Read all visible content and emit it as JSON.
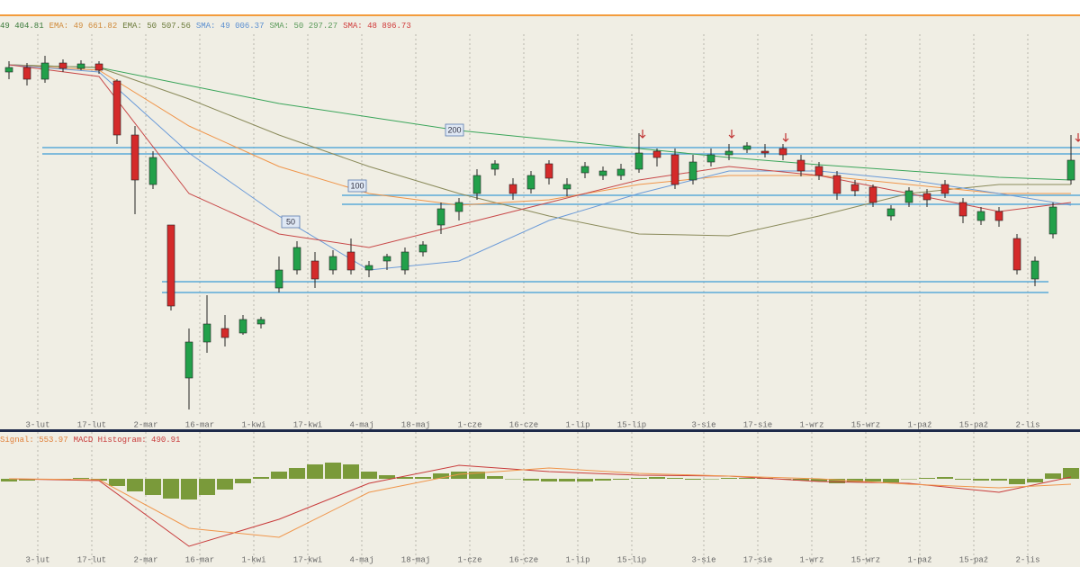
{
  "chart_data": [
    {
      "type": "candlestick",
      "legend": [
        {
          "text": "49 404.81",
          "color": "#3a7a3a"
        },
        {
          "text": "EMA: 49 661.82",
          "color": "#d08a3a"
        },
        {
          "text": "EMA: 50 507.56",
          "color": "#6b7a3a"
        },
        {
          "text": "SMA: 49 006.37",
          "color": "#5b8fd0"
        },
        {
          "text": "SMA: 50 297.27",
          "color": "#5a9a5a"
        },
        {
          "text": "SMA: 48 896.73",
          "color": "#d03a3a"
        }
      ],
      "categories": [
        null,
        null,
        "3-lut",
        null,
        null,
        "17-lut",
        null,
        null,
        "2-mar",
        null,
        null,
        "16-mar",
        null,
        null,
        "1-kwi",
        null,
        null,
        "17-kwi",
        null,
        null,
        "4-maj",
        null,
        null,
        "18-maj",
        null,
        null,
        "1-cze",
        null,
        null,
        "16-cze",
        null,
        null,
        "1-lip",
        null,
        null,
        "15-lip",
        null,
        null,
        null,
        "3-sie",
        null,
        null,
        "17-sie",
        null,
        null,
        "1-wrz",
        null,
        null,
        "15-wrz",
        null,
        null,
        "1-paź",
        null,
        null,
        "15-paź",
        null,
        null,
        "2-lis",
        null,
        null
      ],
      "open": [
        54320,
        54520,
        54000,
        54720,
        54480,
        54680,
        53920,
        51520,
        49320,
        47520,
        40720,
        42320,
        42920,
        42720,
        43120,
        44720,
        45520,
        45920,
        45520,
        46320,
        45520,
        45920,
        45520,
        46320,
        47520,
        48120,
        48920,
        50000,
        49320,
        49120,
        50240,
        49120,
        49840,
        49720,
        49720,
        50000,
        50800,
        50640,
        49520,
        50320,
        50640,
        50880,
        50800,
        50920,
        50400,
        50120,
        49720,
        49320,
        49200,
        47920,
        48520,
        48920,
        49320,
        48520,
        47720,
        48120,
        46920,
        45120,
        47120,
        49520
      ],
      "high": [
        54800,
        54720,
        55040,
        54880,
        54840,
        54800,
        54000,
        51920,
        50800,
        47520,
        42920,
        44400,
        43520,
        43520,
        43440,
        46120,
        46800,
        46320,
        46400,
        46920,
        45920,
        46240,
        46520,
        46800,
        48520,
        48720,
        50000,
        50400,
        49600,
        49920,
        50400,
        49600,
        50320,
        50120,
        50240,
        51600,
        50920,
        50920,
        50640,
        50920,
        51120,
        51200,
        51120,
        51120,
        50640,
        50320,
        49920,
        49520,
        49320,
        48400,
        49200,
        49120,
        49520,
        48720,
        48320,
        48320,
        47120,
        46120,
        48520,
        51520
      ],
      "low": [
        54000,
        53720,
        53840,
        54320,
        54400,
        54240,
        51120,
        48000,
        49120,
        43720,
        39320,
        41840,
        42120,
        42640,
        42920,
        44520,
        45320,
        44720,
        45320,
        45320,
        45200,
        45520,
        45320,
        46120,
        47120,
        47720,
        48640,
        49720,
        48640,
        48920,
        49320,
        48800,
        49600,
        49520,
        49520,
        49840,
        50120,
        49120,
        49320,
        50120,
        50400,
        50720,
        50520,
        50400,
        49680,
        49520,
        48640,
        48800,
        48320,
        47720,
        48320,
        48320,
        48720,
        47600,
        47520,
        47440,
        45320,
        44800,
        46920,
        49320
      ],
      "close": [
        54520,
        54000,
        54720,
        54480,
        54680,
        54400,
        51520,
        49520,
        50520,
        43920,
        42320,
        43120,
        42520,
        43320,
        43320,
        45520,
        46520,
        45120,
        46120,
        45520,
        45720,
        46120,
        46320,
        46640,
        48240,
        48520,
        49720,
        50240,
        48920,
        49720,
        49600,
        49320,
        50120,
        49920,
        50000,
        50720,
        50520,
        49320,
        50320,
        50640,
        50800,
        51040,
        50720,
        50640,
        49920,
        49720,
        48920,
        49040,
        48520,
        48240,
        49040,
        48640,
        48920,
        47920,
        48120,
        47720,
        45520,
        45920,
        48320,
        50400
      ],
      "up_color": "#22a04a",
      "down_color": "#d42a2a",
      "ylim": [
        39000,
        56000
      ],
      "moving_averages": [
        {
          "color": "#3aa55a",
          "x": [
            0,
            5,
            10,
            15,
            20,
            25,
            30,
            35,
            40,
            45,
            50,
            55,
            59
          ],
          "values": [
            54640,
            54520,
            53720,
            52920,
            52320,
            51720,
            51320,
            50920,
            50520,
            50200,
            49920,
            49640,
            49520
          ]
        },
        {
          "color": "#8a8a5a",
          "x": [
            0,
            5,
            10,
            15,
            20,
            25,
            30,
            35,
            40,
            45,
            50,
            55,
            59
          ],
          "values": [
            54640,
            54520,
            53120,
            51520,
            50120,
            48920,
            47920,
            47120,
            47040,
            47920,
            48920,
            49320,
            49320
          ]
        },
        {
          "color": "#f0954a",
          "x": [
            0,
            5,
            10,
            15,
            20,
            25,
            30,
            35,
            40,
            45,
            50,
            55,
            59
          ],
          "values": [
            54640,
            54400,
            51920,
            50120,
            48920,
            48400,
            48640,
            49320,
            49720,
            49720,
            49320,
            48920,
            48920
          ]
        },
        {
          "color": "#6a9ad8",
          "x": [
            0,
            5,
            10,
            15,
            20,
            25,
            30,
            35,
            40,
            45,
            50,
            55,
            59
          ],
          "values": [
            54640,
            54320,
            50720,
            47920,
            45520,
            45920,
            47720,
            48920,
            49920,
            49920,
            49520,
            48920,
            48400
          ]
        },
        {
          "color": "#c84848",
          "x": [
            0,
            5,
            10,
            15,
            20,
            25,
            30,
            35,
            40,
            45,
            50,
            55,
            59
          ],
          "values": [
            54640,
            54120,
            48920,
            47120,
            46520,
            47520,
            48520,
            49520,
            50120,
            49720,
            48920,
            48120,
            48520
          ]
        }
      ],
      "levels": [
        50960,
        50680,
        48840,
        48440,
        45000,
        44520
      ],
      "level_color": "#5aaad8",
      "annotations": [
        "200",
        "100",
        "50"
      ]
    },
    {
      "type": "macd",
      "legend": [
        {
          "text": "Signal: 553.97",
          "color": "#e0803a"
        },
        {
          "text": "MACD Histogram: 490.91",
          "color": "#c83a3a"
        }
      ],
      "categories": [
        null,
        null,
        "3-lut",
        null,
        null,
        "17-lut",
        null,
        null,
        "2-mar",
        null,
        null,
        "16-mar",
        null,
        null,
        "1-kwi",
        null,
        null,
        "17-kwi",
        null,
        null,
        "4-maj",
        null,
        null,
        "18-maj",
        null,
        null,
        "1-cze",
        null,
        null,
        "16-cze",
        null,
        null,
        "1-lip",
        null,
        null,
        "15-lip",
        null,
        null,
        null,
        "3-sie",
        null,
        null,
        "17-sie",
        null,
        null,
        "1-wrz",
        null,
        null,
        "15-wrz",
        null,
        null,
        "1-paź",
        null,
        null,
        "15-paź",
        null,
        null,
        "2-lis",
        null,
        null
      ],
      "histogram": [
        -120,
        -80,
        -40,
        0,
        40,
        -80,
        -320,
        -560,
        -720,
        -880,
        -920,
        -720,
        -480,
        -200,
        80,
        320,
        480,
        640,
        720,
        640,
        320,
        160,
        80,
        80,
        240,
        320,
        320,
        120,
        0,
        -80,
        -120,
        -120,
        -120,
        -80,
        -40,
        40,
        80,
        40,
        -40,
        0,
        40,
        40,
        40,
        0,
        -80,
        -120,
        -200,
        -160,
        -120,
        -160,
        0,
        40,
        80,
        -40,
        -80,
        -80,
        -240,
        -160,
        240,
        480
      ],
      "histogram_color": "#7a9a3a",
      "x": [
        0,
        5,
        10,
        15,
        20,
        25,
        30,
        35,
        40,
        45,
        50,
        55,
        59
      ],
      "series": [
        {
          "color": "#c83a3a",
          "values": [
            0,
            -80,
            -3000,
            -1800,
            -200,
            600,
            320,
            160,
            120,
            -120,
            -200,
            -600,
            80
          ]
        },
        {
          "color": "#f0954a",
          "values": [
            0,
            -40,
            -2200,
            -2600,
            -600,
            200,
            480,
            240,
            120,
            0,
            -240,
            -400,
            -240
          ]
        }
      ],
      "ylim": [
        -3920,
        2080
      ]
    }
  ]
}
